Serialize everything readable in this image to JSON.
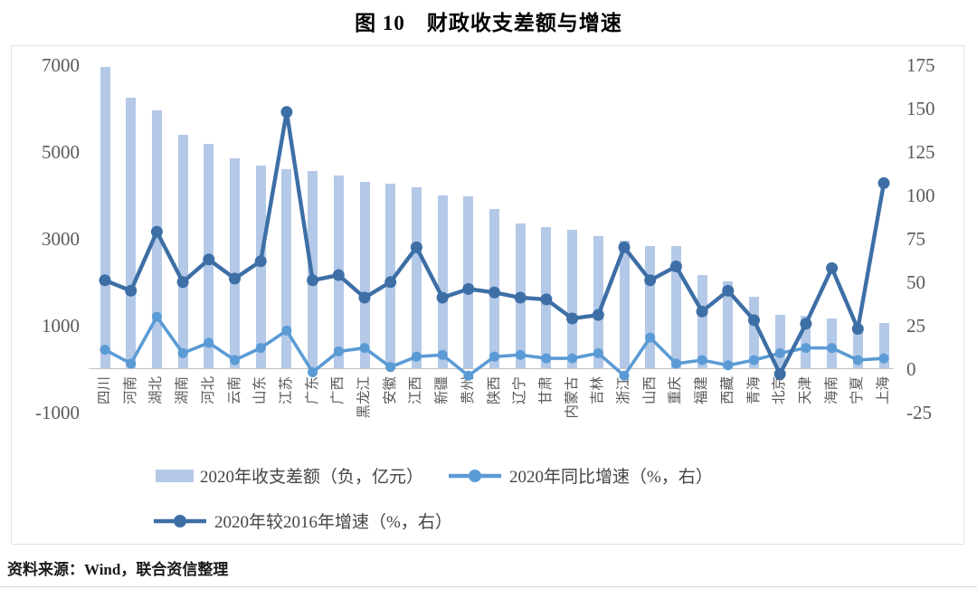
{
  "title": "图 10　财政收支差额与增速",
  "source_note": "资料来源：Wind，联合资信整理",
  "colors": {
    "bar": "#b4c9e8",
    "line_yoy": "#5b9bd5",
    "line_vs2016": "#3d6fa6",
    "axis_text": "#595959",
    "frame_border": "#dde3ec",
    "axis_line": "#c3c3c3"
  },
  "chart_data": {
    "type": "bar+line",
    "title": "图 10　财政收支差额与增速",
    "categories": [
      "四川",
      "河南",
      "湖北",
      "湖南",
      "河北",
      "云南",
      "山东",
      "江苏",
      "广东",
      "广西",
      "黑龙江",
      "安徽",
      "江西",
      "新疆",
      "贵州",
      "陕西",
      "辽宁",
      "甘肃",
      "内蒙古",
      "吉林",
      "浙江",
      "山西",
      "重庆",
      "福建",
      "西藏",
      "青海",
      "北京",
      "天津",
      "海南",
      "宁夏",
      "上海"
    ],
    "series": [
      {
        "name": "2020年收支差额（负，亿元）",
        "type": "bar",
        "axis": "left",
        "values": [
          6950,
          6240,
          5950,
          5400,
          5190,
          4860,
          4680,
          4610,
          4560,
          4460,
          4320,
          4270,
          4180,
          3990,
          3970,
          3680,
          3360,
          3270,
          3200,
          3050,
          2950,
          2830,
          2820,
          2170,
          2020,
          1670,
          1250,
          1220,
          1170,
          950,
          1050
        ]
      },
      {
        "name": "2020年同比增速（%，右）",
        "type": "line",
        "axis": "right",
        "values": [
          11,
          3,
          30,
          9,
          15,
          5,
          12,
          22,
          -2,
          10,
          12,
          1,
          7,
          8,
          -4,
          7,
          8,
          6,
          6,
          9,
          -4,
          18,
          3,
          5,
          2,
          5,
          9,
          12,
          12,
          5,
          6
        ]
      },
      {
        "name": "2020年较2016年增速（%，右）",
        "type": "line",
        "axis": "right",
        "values": [
          51,
          45,
          79,
          50,
          63,
          52,
          62,
          148,
          51,
          54,
          41,
          50,
          70,
          41,
          46,
          44,
          41,
          40,
          29,
          31,
          70,
          51,
          59,
          33,
          45,
          28,
          -3,
          26,
          58,
          23,
          107
        ]
      }
    ],
    "left_axis": {
      "min": -1000,
      "max": 7000,
      "ticks": [
        7000,
        5000,
        3000,
        1000,
        -1000
      ]
    },
    "right_axis": {
      "min": -25,
      "max": 175,
      "ticks": [
        175,
        150,
        125,
        100,
        75,
        50,
        25,
        0,
        -25
      ]
    },
    "grid": false,
    "legend_position": "bottom"
  }
}
